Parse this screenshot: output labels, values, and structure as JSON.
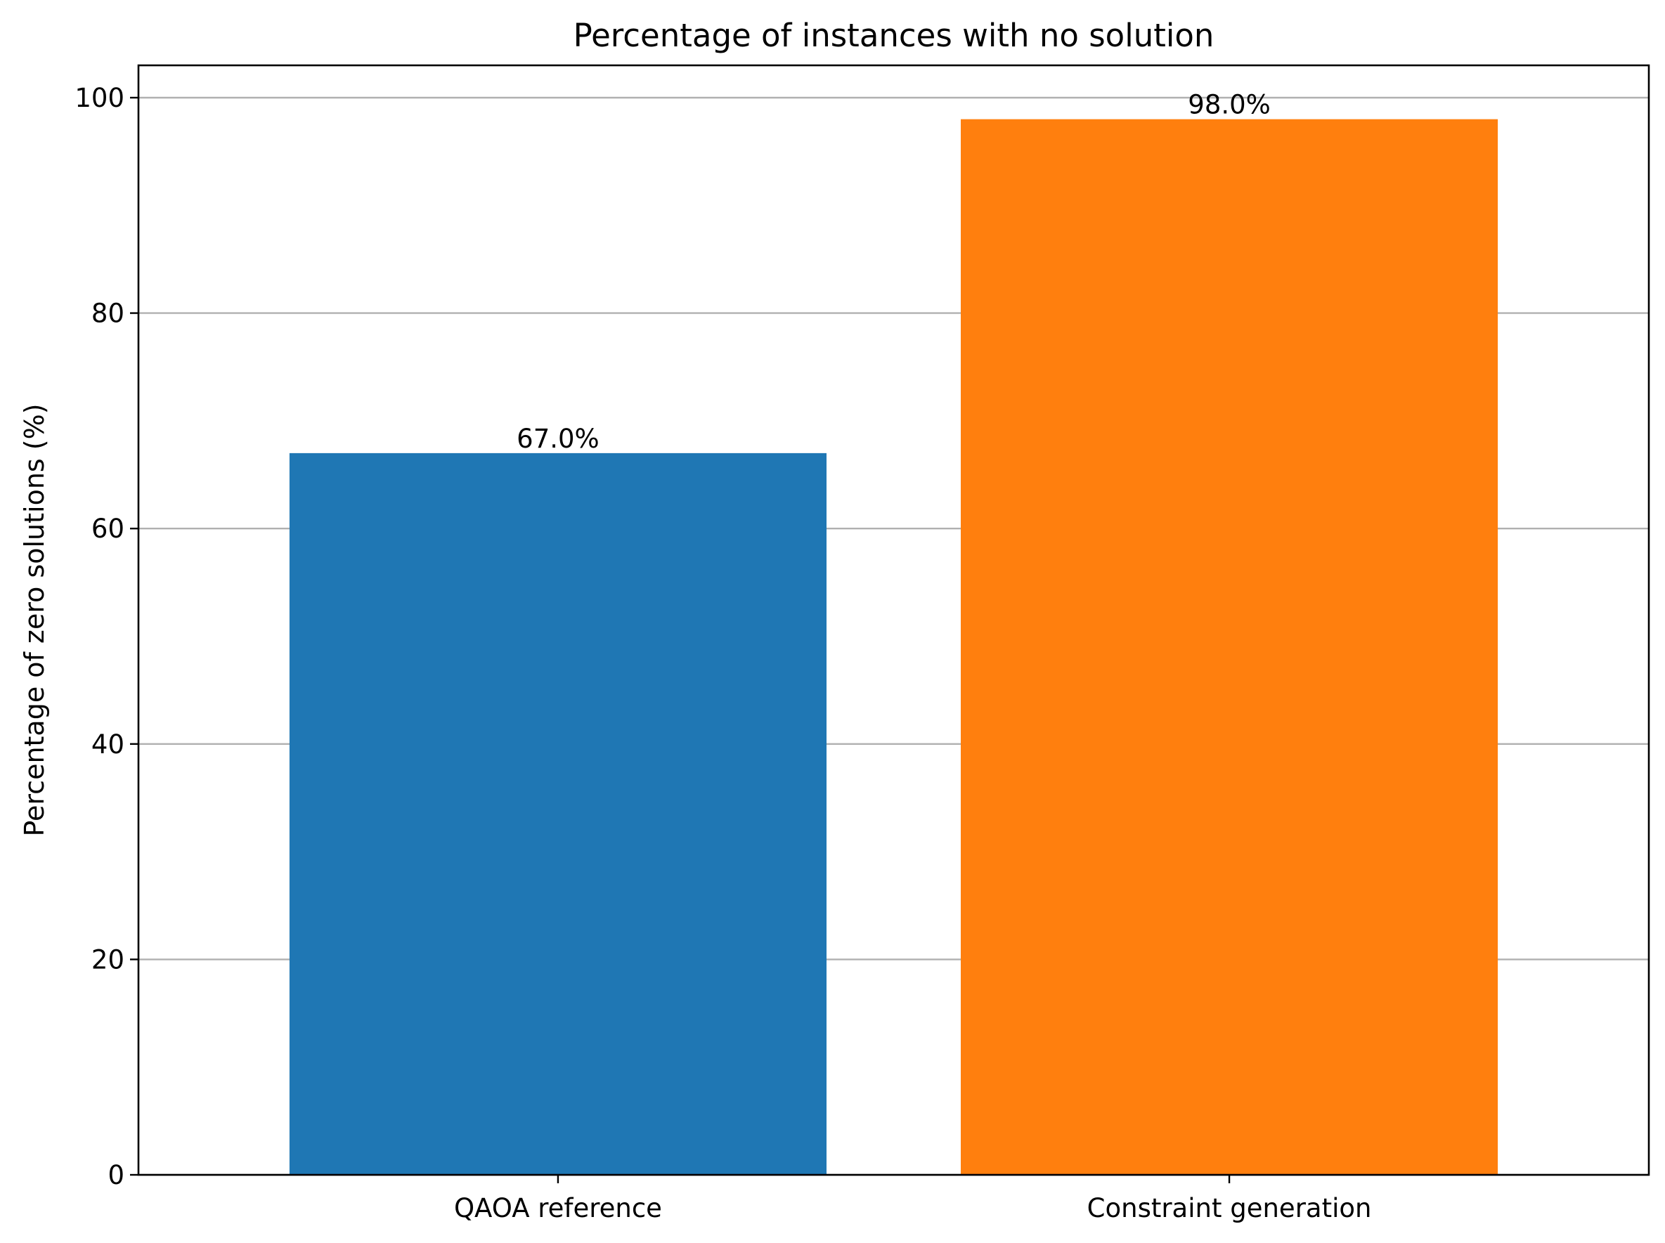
{
  "chart_data": {
    "type": "bar",
    "title": "Percentage of instances with no solution",
    "xlabel": "",
    "ylabel": "Percentage of zero solutions (%)",
    "categories": [
      "QAOA reference",
      "Constraint generation"
    ],
    "values": [
      67.0,
      98.0
    ],
    "data_labels": [
      "67.0%",
      "98.0%"
    ],
    "colors": [
      "#1f77b4",
      "#ff7f0e"
    ],
    "ylim": [
      0,
      103
    ],
    "yticks": [
      0,
      20,
      40,
      60,
      80,
      100
    ],
    "grid": {
      "y": true,
      "x": false,
      "color": "#b0b0b0"
    },
    "legend": "none"
  }
}
